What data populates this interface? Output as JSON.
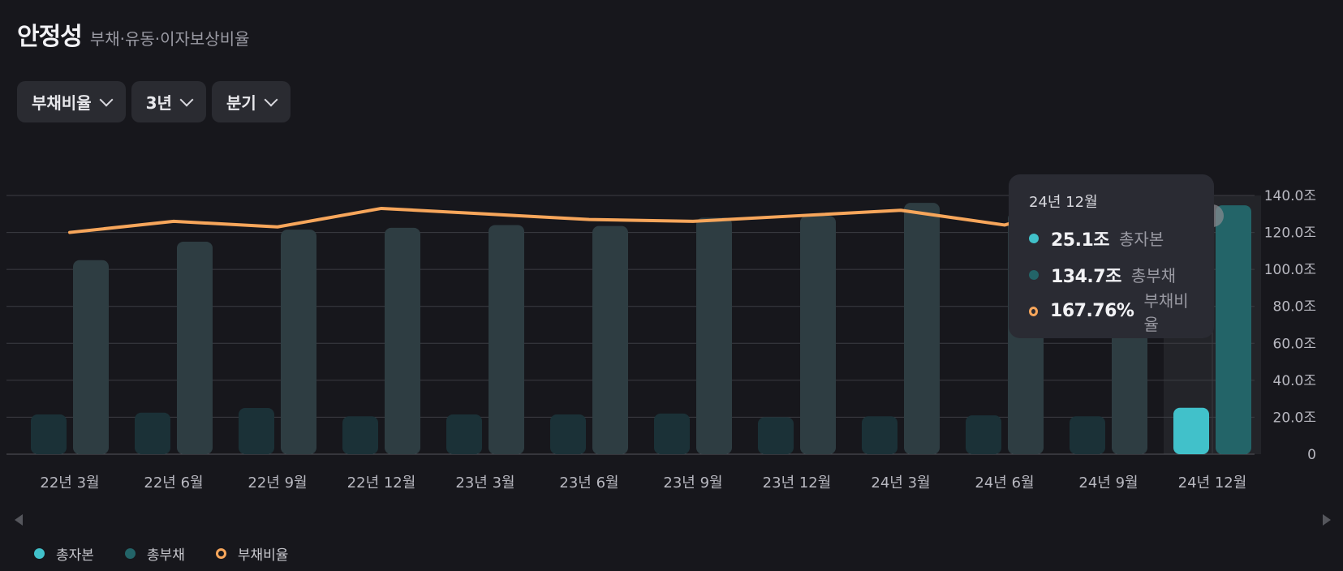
{
  "header": {
    "title": "안정성",
    "subtitle": "부채·유동·이자보상비율"
  },
  "filters": [
    {
      "label": "부채비율"
    },
    {
      "label": "3년"
    },
    {
      "label": "분기"
    }
  ],
  "tooltip": {
    "date": "24년 12월",
    "rows": [
      {
        "value": "25.1조",
        "name": "총자본"
      },
      {
        "value": "134.7조",
        "name": "총부채"
      },
      {
        "value": "167.76%",
        "name": "부채비율"
      }
    ]
  },
  "legend": [
    {
      "label": "총자본"
    },
    {
      "label": "총부채"
    },
    {
      "label": "부채비율"
    }
  ],
  "colors": {
    "capital_dim": "#1b3137",
    "debt_dim": "#2e3d42",
    "capital_active": "#41c1ca",
    "debt_active": "#236468",
    "ratio_line": "#f7a65b",
    "gridline": "#3c3d43",
    "highlight": "#232429"
  },
  "chart_data": {
    "type": "bar",
    "categories": [
      "22년 3월",
      "22년 6월",
      "22년 9월",
      "22년 12월",
      "23년 3월",
      "23년 6월",
      "23년 9월",
      "23년 12월",
      "24년 3월",
      "24년 6월",
      "24년 9월",
      "24년 12월"
    ],
    "series": [
      {
        "name": "총자본",
        "values": [
          21.5,
          22.5,
          25,
          20.5,
          21.5,
          21.5,
          22,
          20,
          20.5,
          21,
          20.5,
          25.1
        ]
      },
      {
        "name": "총부채",
        "values": [
          105,
          115,
          121.5,
          122.5,
          124,
          123.5,
          128,
          129,
          136,
          131,
          124,
          134.7
        ]
      },
      {
        "name": "부채비율",
        "type": "line",
        "unit": "%"
      }
    ],
    "ratio_line_y_on_axis": [
      120,
      126,
      123,
      133,
      130,
      127,
      126,
      129,
      132,
      124,
      140,
      129
    ],
    "yticks": [
      "0",
      "20.0조",
      "40.0조",
      "60.0조",
      "80.0조",
      "100.0조",
      "120.0조",
      "140.0조"
    ],
    "ylim": [
      0,
      140
    ],
    "highlighted_index": 11,
    "grid": true,
    "legend_position": "bottom-left"
  }
}
